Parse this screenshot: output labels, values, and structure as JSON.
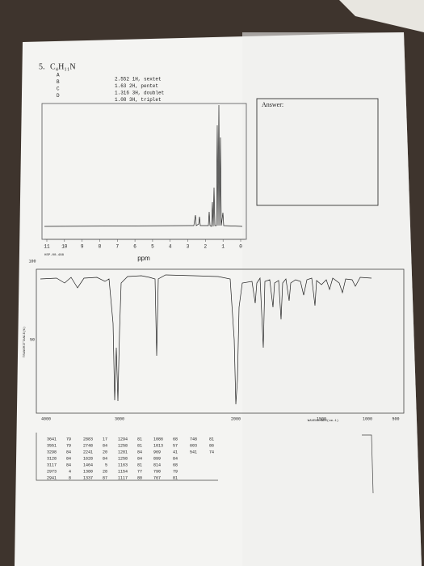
{
  "question": {
    "number": "5.",
    "formula": "C₄H₁₁N"
  },
  "nmr": {
    "labels": [
      "A",
      "B",
      "C",
      "D"
    ],
    "peaks": [
      "2.552 1H, sextet",
      "1.63 2H, pentet",
      "1.316 3H, doublet",
      "1.08 3H, triplet"
    ],
    "x_ticks": [
      11,
      10,
      9,
      8,
      7,
      6,
      5,
      4,
      3,
      2,
      1,
      0
    ],
    "x_label": "ppm",
    "code": "HSP-00-488"
  },
  "answer": {
    "label": "Answer:"
  },
  "ir": {
    "y_ticks": [
      100,
      50
    ],
    "x_ticks": [
      4000,
      3000,
      2000,
      1500,
      1000,
      500
    ],
    "y_label": "TRANSMITTANCE(%)",
    "x_label": "WAVENUMBER(cm-1)"
  },
  "peak_table": {
    "columns": [
      [
        [
          3641,
          79
        ],
        [
          3551,
          79
        ],
        [
          3298,
          84
        ],
        [
          3128,
          84
        ],
        [
          3117,
          84
        ],
        [
          2973,
          4
        ],
        [
          2941,
          8
        ]
      ],
      [
        [
          2883,
          17
        ],
        [
          2748,
          84
        ],
        [
          2241,
          20
        ],
        [
          1628,
          84
        ],
        [
          1464,
          5
        ],
        [
          1380,
          28
        ],
        [
          1337,
          87
        ]
      ],
      [
        [
          1294,
          81
        ],
        [
          1258,
          81
        ],
        [
          1281,
          84
        ],
        [
          1258,
          84
        ],
        [
          1163,
          81
        ],
        [
          1154,
          77
        ],
        [
          1117,
          80
        ]
      ],
      [
        [
          1086,
          68
        ],
        [
          1013,
          57
        ],
        [
          969,
          41
        ],
        [
          899,
          84
        ],
        [
          814,
          68
        ],
        [
          790,
          79
        ],
        [
          767,
          81
        ]
      ],
      [
        [
          748,
          81
        ],
        [
          603,
          86
        ],
        [
          541,
          74
        ]
      ]
    ]
  }
}
